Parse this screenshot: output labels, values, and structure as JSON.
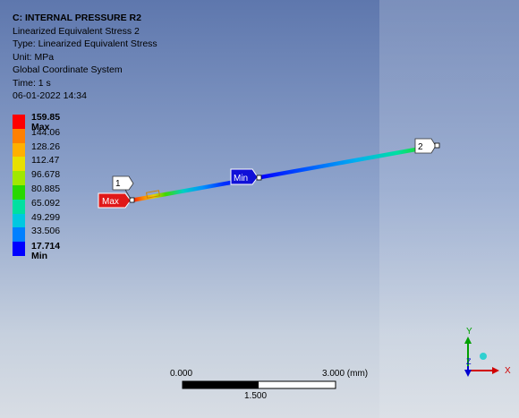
{
  "header": {
    "title": "C: INTERNAL PRESSURE R2",
    "lines": [
      "Linearized Equivalent Stress 2",
      "Type: Linearized Equivalent Stress",
      "Unit: MPa",
      "Global Coordinate System",
      "Time: 1 s",
      "06-01-2022 14:34"
    ]
  },
  "legend": {
    "entries": [
      {
        "label": "159.85 Max",
        "color": "#ff0000",
        "bold": true
      },
      {
        "label": "144.06",
        "color": "#ff8000",
        "bold": false
      },
      {
        "label": "128.26",
        "color": "#ffb000",
        "bold": false
      },
      {
        "label": "112.47",
        "color": "#e8e000",
        "bold": false
      },
      {
        "label": "96.678",
        "color": "#a0e800",
        "bold": false
      },
      {
        "label": "80.885",
        "color": "#28d800",
        "bold": false
      },
      {
        "label": "65.092",
        "color": "#00e0a0",
        "bold": false
      },
      {
        "label": "49.299",
        "color": "#00c8e0",
        "bold": false
      },
      {
        "label": "33.506",
        "color": "#0080ff",
        "bold": false
      },
      {
        "label": "17.714 Min",
        "color": "#0000ff",
        "bold": true
      }
    ]
  },
  "probes": {
    "max_label": "Max",
    "min_label": "Min",
    "point1": "1",
    "point2": "2"
  },
  "scale": {
    "left": "0.000",
    "right": "3.000 (mm)",
    "mid": "1.500"
  },
  "triad": {
    "x": "X",
    "y": "Y",
    "z": "Z"
  }
}
